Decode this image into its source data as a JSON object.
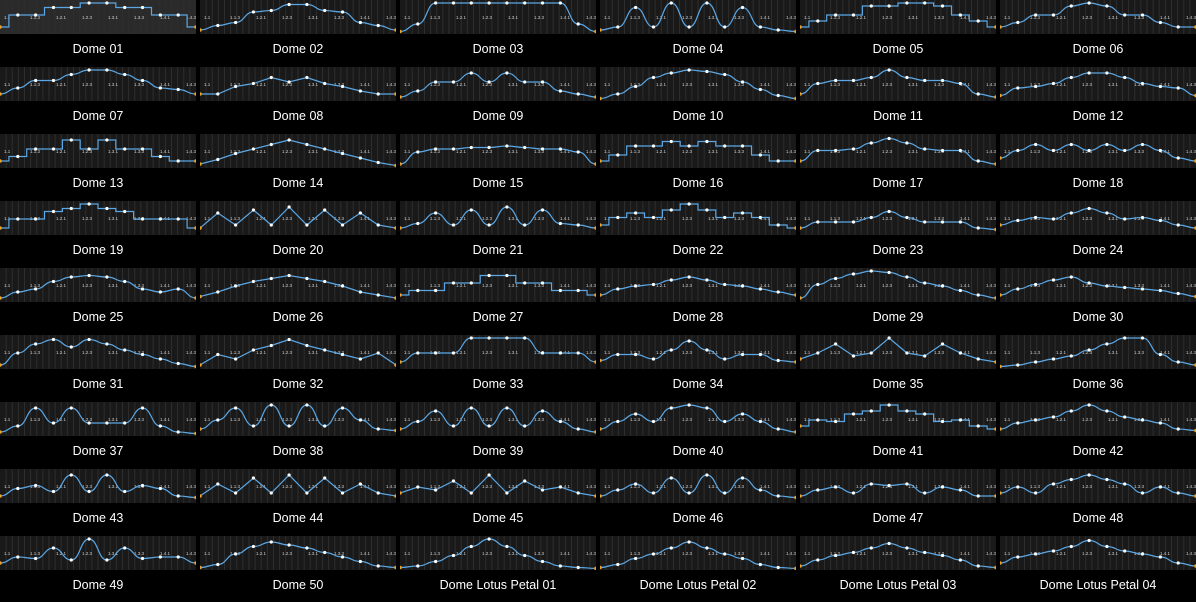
{
  "colors": {
    "background": "#000000",
    "panel": "#191919",
    "grid_line": "#2e2e2e",
    "curve": "#5ba7e5",
    "node": "#ffffff",
    "endpoint": "#f0a020",
    "label": "#ffffff",
    "tick_text": "#cfcfcf"
  },
  "tick_labels": [
    "1.1",
    "1.1.3",
    "1.2.1",
    "1.2.3",
    "1.3.1",
    "1.3.3",
    "1.4.1",
    "1.4.3"
  ],
  "presets": [
    {
      "name": "Dome 01",
      "shape": [
        0.2,
        0.6,
        0.6,
        0.85,
        0.85,
        1,
        1,
        0.85,
        0.85,
        0.6,
        0.6,
        0.2
      ],
      "style": "step"
    },
    {
      "name": "Dome 02",
      "shape": [
        0.1,
        0.25,
        0.35,
        0.7,
        0.75,
        0.95,
        0.95,
        0.75,
        0.7,
        0.35,
        0.25,
        0.1
      ],
      "style": "smooth"
    },
    {
      "name": "Dome 03",
      "shape": [
        0.05,
        0.3,
        1,
        1,
        1,
        1,
        1,
        1,
        1,
        1,
        0.3,
        0.05
      ],
      "style": "smooth"
    },
    {
      "name": "Dome 04",
      "shape": [
        0.1,
        0.2,
        0.85,
        0.2,
        1,
        0.2,
        1,
        0.2,
        0.85,
        0.2,
        0.1,
        0.05
      ],
      "style": "smooth"
    },
    {
      "name": "Dome 05",
      "shape": [
        0.2,
        0.4,
        0.6,
        0.6,
        0.9,
        0.9,
        1,
        1,
        0.9,
        0.6,
        0.4,
        0.2
      ],
      "style": "step"
    },
    {
      "name": "Dome 06",
      "shape": [
        0.2,
        0.35,
        0.6,
        0.6,
        0.9,
        1,
        0.9,
        0.6,
        0.6,
        0.35,
        0.2,
        0.2
      ],
      "style": "smooth"
    },
    {
      "name": "Dome 07",
      "shape": [
        0.2,
        0.4,
        0.65,
        0.65,
        0.85,
        1,
        1,
        0.85,
        0.65,
        0.4,
        0.35,
        0.2
      ],
      "style": "smooth"
    },
    {
      "name": "Dome 08",
      "shape": [
        0.2,
        0.2,
        0.45,
        0.55,
        0.75,
        0.6,
        0.75,
        0.55,
        0.45,
        0.3,
        0.2,
        0.2
      ],
      "style": "linear"
    },
    {
      "name": "Dome 09",
      "shape": [
        0.1,
        0.3,
        0.6,
        0.6,
        0.9,
        0.6,
        0.9,
        0.6,
        0.6,
        0.3,
        0.2,
        0.1
      ],
      "style": "smooth"
    },
    {
      "name": "Dome 10",
      "shape": [
        0.05,
        0.2,
        0.45,
        0.75,
        0.9,
        1,
        0.95,
        0.85,
        0.6,
        0.35,
        0.15,
        0.05
      ],
      "style": "smooth"
    },
    {
      "name": "Dome 11",
      "shape": [
        0.2,
        0.55,
        0.65,
        0.65,
        0.75,
        1,
        0.75,
        0.65,
        0.65,
        0.55,
        0.2,
        0.1
      ],
      "style": "smooth"
    },
    {
      "name": "Dome 12",
      "shape": [
        0.15,
        0.4,
        0.45,
        0.55,
        0.75,
        0.9,
        0.9,
        0.75,
        0.55,
        0.45,
        0.4,
        0.15
      ],
      "style": "smooth"
    },
    {
      "name": "Dome 13",
      "shape": [
        0.2,
        0.35,
        0.6,
        0.6,
        0.9,
        0.6,
        0.9,
        0.6,
        0.6,
        0.35,
        0.2,
        0.2
      ],
      "style": "step"
    },
    {
      "name": "Dome 14",
      "shape": [
        0.1,
        0.25,
        0.45,
        0.6,
        0.75,
        0.9,
        0.75,
        0.6,
        0.45,
        0.3,
        0.15,
        0.05
      ],
      "style": "linear"
    },
    {
      "name": "Dome 15",
      "shape": [
        0.1,
        0.5,
        0.6,
        0.6,
        0.65,
        0.65,
        0.7,
        0.65,
        0.6,
        0.6,
        0.5,
        0.1
      ],
      "style": "smooth"
    },
    {
      "name": "Dome 16",
      "shape": [
        0.2,
        0.4,
        0.7,
        0.7,
        0.85,
        0.7,
        0.85,
        0.7,
        0.7,
        0.4,
        0.2,
        0.2
      ],
      "style": "step"
    },
    {
      "name": "Dome 17",
      "shape": [
        0.2,
        0.55,
        0.55,
        0.6,
        0.8,
        0.95,
        0.8,
        0.6,
        0.55,
        0.55,
        0.2,
        0.1
      ],
      "style": "smooth"
    },
    {
      "name": "Dome 18",
      "shape": [
        0.3,
        0.55,
        0.75,
        0.55,
        0.75,
        0.55,
        0.75,
        0.55,
        0.75,
        0.55,
        0.3,
        0.2
      ],
      "style": "smooth"
    },
    {
      "name": "Dome 19",
      "shape": [
        0.2,
        0.5,
        0.5,
        0.75,
        0.85,
        1,
        0.85,
        0.75,
        0.5,
        0.5,
        0.5,
        0.2
      ],
      "style": "step"
    },
    {
      "name": "Dome 20",
      "shape": [
        0.2,
        0.7,
        0.3,
        0.8,
        0.3,
        0.9,
        0.3,
        0.8,
        0.3,
        0.7,
        0.3,
        0.2
      ],
      "style": "linear"
    },
    {
      "name": "Dome 21",
      "shape": [
        0.2,
        0.35,
        0.7,
        0.3,
        0.8,
        0.3,
        0.9,
        0.3,
        0.8,
        0.35,
        0.3,
        0.2
      ],
      "style": "smooth"
    },
    {
      "name": "Dome 22",
      "shape": [
        0.3,
        0.55,
        0.7,
        0.55,
        0.8,
        1,
        0.8,
        0.55,
        0.7,
        0.55,
        0.3,
        0.2
      ],
      "style": "step"
    },
    {
      "name": "Dome 23",
      "shape": [
        0.2,
        0.4,
        0.4,
        0.4,
        0.55,
        0.75,
        0.55,
        0.4,
        0.4,
        0.4,
        0.2,
        0.15
      ],
      "style": "smooth"
    },
    {
      "name": "Dome 24",
      "shape": [
        0.3,
        0.45,
        0.55,
        0.5,
        0.7,
        0.85,
        0.7,
        0.5,
        0.55,
        0.45,
        0.3,
        0.2
      ],
      "style": "smooth"
    },
    {
      "name": "Dome 25",
      "shape": [
        0.1,
        0.3,
        0.4,
        0.65,
        0.8,
        0.85,
        0.8,
        0.65,
        0.4,
        0.3,
        0.4,
        0.1
      ],
      "style": "smooth"
    },
    {
      "name": "Dome 26",
      "shape": [
        0.15,
        0.3,
        0.5,
        0.65,
        0.75,
        0.85,
        0.75,
        0.65,
        0.5,
        0.3,
        0.2,
        0.1
      ],
      "style": "linear"
    },
    {
      "name": "Dome 27",
      "shape": [
        0.2,
        0.35,
        0.35,
        0.6,
        0.6,
        0.85,
        0.85,
        0.6,
        0.6,
        0.35,
        0.35,
        0.2
      ],
      "style": "step"
    },
    {
      "name": "Dome 28",
      "shape": [
        0.2,
        0.4,
        0.5,
        0.55,
        0.7,
        0.8,
        0.7,
        0.55,
        0.5,
        0.4,
        0.3,
        0.2
      ],
      "style": "smooth"
    },
    {
      "name": "Dome 29",
      "shape": [
        0.1,
        0.55,
        0.75,
        0.9,
        1,
        0.95,
        0.8,
        0.6,
        0.5,
        0.35,
        0.2,
        0.1
      ],
      "style": "smooth"
    },
    {
      "name": "Dome 30",
      "shape": [
        0.2,
        0.4,
        0.55,
        0.7,
        0.8,
        0.6,
        0.5,
        0.45,
        0.4,
        0.35,
        0.25,
        0.15
      ],
      "style": "smooth"
    },
    {
      "name": "Dome 31",
      "shape": [
        0.1,
        0.5,
        0.8,
        0.95,
        0.7,
        0.95,
        0.8,
        0.6,
        0.45,
        0.3,
        0.15,
        0.05
      ],
      "style": "smooth"
    },
    {
      "name": "Dome 32",
      "shape": [
        0.1,
        0.45,
        0.3,
        0.6,
        0.75,
        0.95,
        0.75,
        0.6,
        0.45,
        0.3,
        0.5,
        0.1
      ],
      "style": "linear"
    },
    {
      "name": "Dome 33",
      "shape": [
        0.2,
        0.5,
        0.5,
        0.5,
        1,
        1,
        1,
        1,
        0.5,
        0.5,
        0.5,
        0.2
      ],
      "style": "smooth"
    },
    {
      "name": "Dome 34",
      "shape": [
        0.25,
        0.45,
        0.45,
        0.3,
        0.6,
        0.9,
        0.6,
        0.3,
        0.45,
        0.45,
        0.25,
        0.2
      ],
      "style": "smooth"
    },
    {
      "name": "Dome 35",
      "shape": [
        0.3,
        0.5,
        0.8,
        0.4,
        0.5,
        1,
        0.5,
        0.4,
        0.8,
        0.5,
        0.3,
        0.2
      ],
      "style": "linear"
    },
    {
      "name": "Dome 36",
      "shape": [
        0.05,
        0.1,
        0.2,
        0.3,
        0.4,
        0.6,
        0.8,
        1,
        1,
        0.45,
        0.2,
        0.1
      ],
      "style": "smooth"
    },
    {
      "name": "Dome 37",
      "shape": [
        0.1,
        0.3,
        0.9,
        0.4,
        0.9,
        0.4,
        0.4,
        0.4,
        0.9,
        0.3,
        0.1,
        0.05
      ],
      "style": "smooth"
    },
    {
      "name": "Dome 38",
      "shape": [
        0.2,
        0.5,
        0.9,
        0.3,
        1,
        0.3,
        1,
        0.3,
        0.9,
        0.5,
        0.2,
        0.15
      ],
      "style": "smooth"
    },
    {
      "name": "Dome 39",
      "shape": [
        0.2,
        0.45,
        0.8,
        0.3,
        0.9,
        0.3,
        0.9,
        0.3,
        0.8,
        0.45,
        0.2,
        0.1
      ],
      "style": "smooth"
    },
    {
      "name": "Dome 40",
      "shape": [
        0.2,
        0.45,
        0.7,
        0.45,
        0.9,
        1,
        0.9,
        0.45,
        0.7,
        0.45,
        0.2,
        0.1
      ],
      "style": "smooth"
    },
    {
      "name": "Dome 41",
      "shape": [
        0.3,
        0.5,
        0.45,
        0.7,
        0.8,
        1,
        0.8,
        0.7,
        0.45,
        0.5,
        0.3,
        0.2
      ],
      "style": "step"
    },
    {
      "name": "Dome 42",
      "shape": [
        0.2,
        0.4,
        0.5,
        0.6,
        0.8,
        1,
        0.8,
        0.6,
        0.5,
        0.4,
        0.2,
        0.15
      ],
      "style": "smooth"
    },
    {
      "name": "Dome 43",
      "shape": [
        0.2,
        0.45,
        0.55,
        0.35,
        0.9,
        0.35,
        0.9,
        0.35,
        0.55,
        0.45,
        0.2,
        0.15
      ],
      "style": "smooth"
    },
    {
      "name": "Dome 44",
      "shape": [
        0.2,
        0.6,
        0.3,
        0.8,
        0.3,
        0.9,
        0.3,
        0.8,
        0.3,
        0.6,
        0.3,
        0.2
      ],
      "style": "linear"
    },
    {
      "name": "Dome 45",
      "shape": [
        0.3,
        0.5,
        0.4,
        0.7,
        0.3,
        0.9,
        0.3,
        0.7,
        0.4,
        0.5,
        0.3,
        0.2
      ],
      "style": "linear"
    },
    {
      "name": "Dome 46",
      "shape": [
        0.2,
        0.4,
        0.6,
        0.3,
        0.8,
        0.3,
        0.9,
        0.3,
        0.8,
        0.4,
        0.2,
        0.15
      ],
      "style": "smooth"
    },
    {
      "name": "Dome 47",
      "shape": [
        0.2,
        0.4,
        0.5,
        0.3,
        0.6,
        0.55,
        0.6,
        0.3,
        0.5,
        0.4,
        0.2,
        0.2
      ],
      "style": "smooth"
    },
    {
      "name": "Dome 48",
      "shape": [
        0.3,
        0.5,
        0.3,
        0.6,
        0.75,
        0.9,
        0.75,
        0.6,
        0.3,
        0.5,
        0.3,
        0.2
      ],
      "style": "smooth"
    },
    {
      "name": "Dome 49",
      "shape": [
        0.2,
        0.4,
        0.35,
        0.7,
        0.3,
        1,
        0.3,
        0.7,
        0.35,
        0.4,
        0.4,
        0.2
      ],
      "style": "smooth"
    },
    {
      "name": "Dome 50",
      "shape": [
        0.05,
        0.15,
        0.5,
        0.75,
        0.9,
        0.8,
        0.7,
        0.55,
        0.4,
        0.25,
        0.1,
        0.05
      ],
      "style": "smooth"
    },
    {
      "name": "Dome Lotus Petal 01",
      "shape": [
        0.05,
        0.1,
        0.25,
        0.45,
        0.75,
        1,
        0.75,
        0.45,
        0.25,
        0.1,
        0.05,
        0.02
      ],
      "style": "smooth"
    },
    {
      "name": "Dome Lotus Petal 02",
      "shape": [
        0.05,
        0.15,
        0.35,
        0.5,
        0.7,
        0.9,
        0.7,
        0.5,
        0.35,
        0.15,
        0.05,
        0.02
      ],
      "style": "smooth"
    },
    {
      "name": "Dome Lotus Petal 03",
      "shape": [
        0.1,
        0.3,
        0.45,
        0.55,
        0.7,
        0.85,
        0.7,
        0.55,
        0.45,
        0.3,
        0.1,
        0.05
      ],
      "style": "smooth"
    },
    {
      "name": "Dome Lotus Petal 04",
      "shape": [
        0.2,
        0.4,
        0.5,
        0.6,
        0.75,
        0.95,
        0.75,
        0.6,
        0.5,
        0.4,
        0.2,
        0.1
      ],
      "style": "smooth"
    }
  ]
}
